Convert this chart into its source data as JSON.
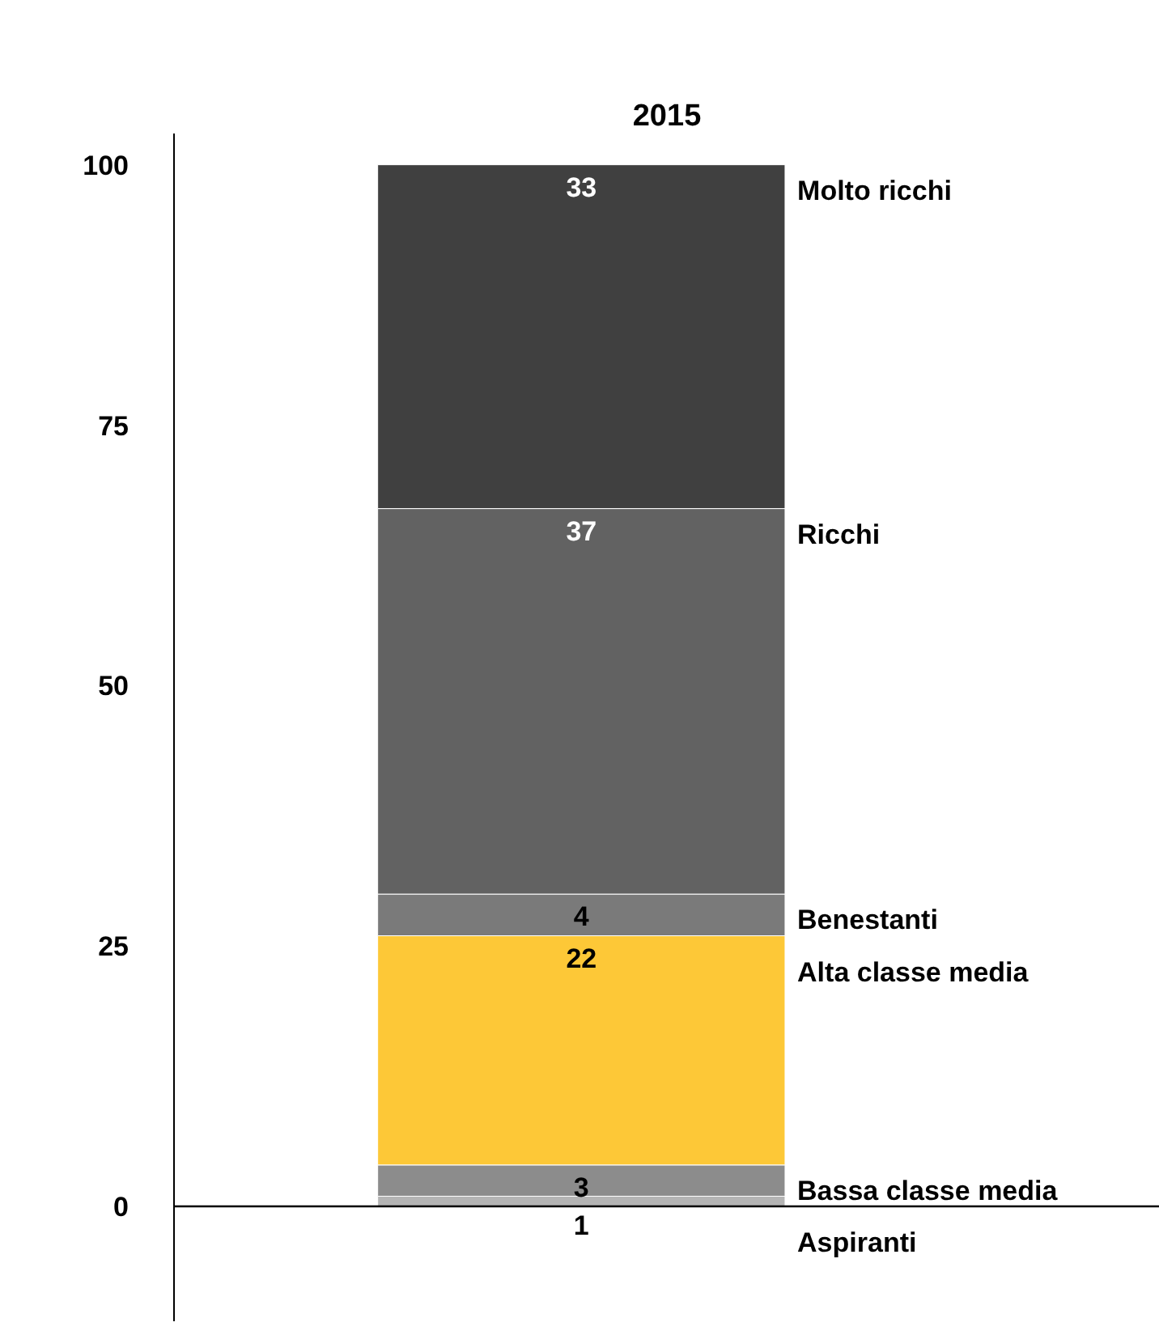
{
  "chart_data": {
    "type": "bar",
    "title": "2015",
    "categories": [
      null
    ],
    "stacked": true,
    "series": [
      {
        "name": "Aspiranti",
        "color": "#b4b4b4",
        "values": [
          1
        ]
      },
      {
        "name": "Bassa classe media",
        "color": "#8c8c8c",
        "values": [
          3
        ]
      },
      {
        "name": "Alta classe media",
        "color": "#fdc837",
        "values": [
          22
        ]
      },
      {
        "name": "Benestanti",
        "color": "#7a7a7a",
        "values": [
          4
        ]
      },
      {
        "name": "Ricchi",
        "color": "#626262",
        "values": [
          37
        ]
      },
      {
        "name": "Molto ricchi",
        "color": "#404040",
        "values": [
          33
        ]
      }
    ],
    "ylim": [
      -11,
      103
    ],
    "yticks": [
      0,
      25,
      50,
      75,
      100
    ],
    "data_labels": true
  }
}
